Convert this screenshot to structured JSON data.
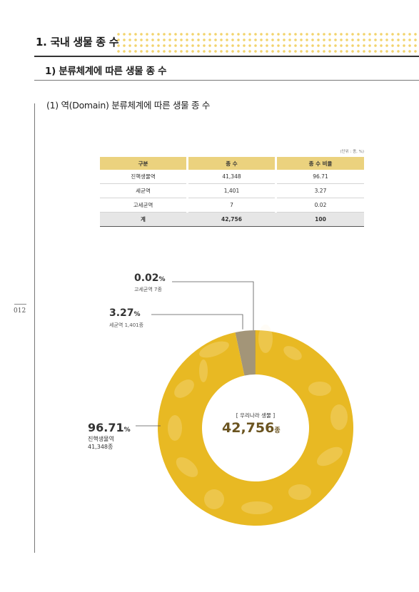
{
  "header": {
    "section_title": "1. 국내 생물 종 수",
    "subsection_title": "1) 분류체계에 따른 생물 종 수",
    "sub_subsection_title": "(1) 역(Domain) 분류체계에 따른 생물 종 수"
  },
  "page_number": "012",
  "table": {
    "unit_note": "(단위 : 종, %)",
    "headers": [
      "구분",
      "종 수",
      "종 수 비율"
    ],
    "rows": [
      [
        "진핵생물역",
        "41,348",
        "96.71"
      ],
      [
        "세균역",
        "1,401",
        "3.27"
      ],
      [
        "고세균역",
        "7",
        "0.02"
      ]
    ],
    "total": [
      "계",
      "42,756",
      "100"
    ]
  },
  "chart_data": {
    "type": "pie",
    "donut": true,
    "center_label": "[ 우리나라 생물 ]",
    "center_value": "42,756",
    "center_unit": "종",
    "slices": [
      {
        "pct_value": "96.71",
        "pct_sign": "%",
        "name": "진핵생물역",
        "count": "41,348종",
        "percent": 96.71,
        "color": "#e8b923"
      },
      {
        "pct_value": "3.27",
        "pct_sign": "%",
        "name": "세균역",
        "count": "1,401종",
        "percent": 3.27,
        "color": "#a39578"
      },
      {
        "pct_value": "0.02",
        "pct_sign": "%",
        "name": "고세균역",
        "count": "7종",
        "percent": 0.02,
        "color": "#555555"
      }
    ]
  }
}
